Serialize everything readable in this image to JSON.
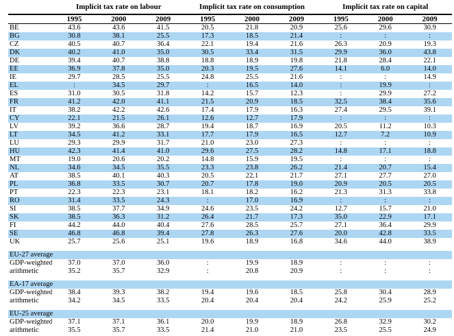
{
  "table": {
    "groups": [
      "Implicit tax rate on labour",
      "Implicit tax rate on consumption",
      "Implicit tax rate on capital"
    ],
    "years": [
      "1995",
      "2000",
      "2009"
    ],
    "missing_symbol": ":",
    "highlight_color": "#ADD6F3",
    "rows": [
      {
        "label": "BE",
        "values": [
          "43.6",
          "43.6",
          "41.5",
          "20.5",
          "21.8",
          "20.9",
          "25.6",
          "29.6",
          "30.9"
        ]
      },
      {
        "label": "BG",
        "values": [
          "30.8",
          "38.1",
          "25.5",
          "17.3",
          "18.5",
          "21.4",
          ":",
          ":",
          ":"
        ]
      },
      {
        "label": "CZ",
        "values": [
          "40.5",
          "40.7",
          "36.4",
          "22.1",
          "19.4",
          "21.6",
          "26.3",
          "20.9",
          "19.3"
        ]
      },
      {
        "label": "DK",
        "values": [
          "40.2",
          "41.0",
          "35.0",
          "30.5",
          "33.4",
          "31.5",
          "29.9",
          "36.0",
          "43.8"
        ]
      },
      {
        "label": "DE",
        "values": [
          "39.4",
          "40.7",
          "38.8",
          "18.8",
          "18.9",
          "19.8",
          "21.8",
          "28.4",
          "22.1"
        ]
      },
      {
        "label": "EE",
        "values": [
          "36.9",
          "37.8",
          "35.0",
          "20.3",
          "19.5",
          "27.6",
          "14.1",
          "6.0",
          "14.0"
        ]
      },
      {
        "label": "IE",
        "values": [
          "29.7",
          "28.5",
          "25.5",
          "24.8",
          "25.5",
          "21.6",
          ":",
          ":",
          "14.9"
        ]
      },
      {
        "label": "EL",
        "values": [
          ":",
          "34.5",
          "29.7",
          ":",
          "16.5",
          "14.0",
          ":",
          "19.9",
          ":"
        ]
      },
      {
        "label": "ES",
        "values": [
          "31.0",
          "30.5",
          "31.8",
          "14.2",
          "15.7",
          "12.3",
          ":",
          "29.9",
          "27.2"
        ]
      },
      {
        "label": "FR",
        "values": [
          "41.2",
          "42.0",
          "41.1",
          "21.5",
          "20.9",
          "18.5",
          "32.5",
          "38.4",
          "35.6"
        ]
      },
      {
        "label": "IT",
        "values": [
          "38.2",
          "42.2",
          "42.6",
          "17.4",
          "17.9",
          "16.3",
          "27.4",
          "29.5",
          "39.1"
        ]
      },
      {
        "label": "CY",
        "values": [
          "22.1",
          "21.5",
          "26.1",
          "12.6",
          "12.7",
          "17.9",
          ":",
          ":",
          ":"
        ]
      },
      {
        "label": "LV",
        "values": [
          "39.2",
          "36.6",
          "28.7",
          "19.4",
          "18.7",
          "16.9",
          "20.5",
          "11.2",
          "10.3"
        ]
      },
      {
        "label": "LT",
        "values": [
          "34.5",
          "41.2",
          "33.1",
          "17.7",
          "17.9",
          "16.5",
          "12.7",
          "7.2",
          "10.9"
        ]
      },
      {
        "label": "LU",
        "values": [
          "29.3",
          "29.9",
          "31.7",
          "21.0",
          "23.0",
          "27.3",
          ":",
          ":",
          ":"
        ]
      },
      {
        "label": "HU",
        "values": [
          "42.3",
          "41.4",
          "41.0",
          "29.6",
          "27.5",
          "28.2",
          "14.8",
          "17.1",
          "18.8"
        ]
      },
      {
        "label": "MT",
        "values": [
          "19.0",
          "20.6",
          "20.2",
          "14.8",
          "15.9",
          "19.5",
          ":",
          ":",
          ":"
        ]
      },
      {
        "label": "NL",
        "values": [
          "34.6",
          "34.5",
          "35.5",
          "23.3",
          "23.8",
          "26.2",
          "21.4",
          "20.7",
          "15.4"
        ]
      },
      {
        "label": "AT",
        "values": [
          "38.5",
          "40.1",
          "40.3",
          "20.5",
          "22.1",
          "21.7",
          "27.1",
          "27.7",
          "27.0"
        ]
      },
      {
        "label": "PL",
        "values": [
          "36.8",
          "33.5",
          "30.7",
          "20.7",
          "17.8",
          "19.0",
          "20.9",
          "20.5",
          "20.5"
        ]
      },
      {
        "label": "PT",
        "values": [
          "22.3",
          "22.3",
          "23.1",
          "18.1",
          "18.2",
          "16.2",
          "21.3",
          "31.3",
          "33.8"
        ]
      },
      {
        "label": "RO",
        "values": [
          "31.4",
          "33.5",
          "24.3",
          ":",
          "17.0",
          "16.9",
          ":",
          ":",
          ":"
        ]
      },
      {
        "label": "SI",
        "values": [
          "38.5",
          "37.7",
          "34.9",
          "24.6",
          "23.5",
          "24.2",
          "12.7",
          "15.7",
          "21.0"
        ]
      },
      {
        "label": "SK",
        "values": [
          "38.5",
          "36.3",
          "31.2",
          "26.4",
          "21.7",
          "17.3",
          "35.0",
          "22.9",
          "17.1"
        ]
      },
      {
        "label": "FI",
        "values": [
          "44.2",
          "44.0",
          "40.4",
          "27.6",
          "28.5",
          "25.7",
          "27.1",
          "36.4",
          "29.9"
        ]
      },
      {
        "label": "SE",
        "values": [
          "46.8",
          "46.8",
          "39.4",
          "27.8",
          "26.3",
          "27.6",
          "20.0",
          "42.8",
          "33.5"
        ]
      },
      {
        "label": "UK",
        "values": [
          "25.7",
          "25.6",
          "25.1",
          "19.6",
          "18.9",
          "16.8",
          "34.6",
          "44.0",
          "38.9"
        ]
      }
    ],
    "sections": [
      {
        "header": "EU-27 average",
        "rows": [
          {
            "label": "GDP-weighted",
            "values": [
              "37.0",
              "37.0",
              "36.0",
              ":",
              "19.9",
              "18.9",
              ":",
              ":",
              ":"
            ]
          },
          {
            "label": "arithmetic",
            "values": [
              "35.2",
              "35.7",
              "32.9",
              ":",
              "20.8",
              "20.9",
              ":",
              ":",
              ":"
            ]
          }
        ]
      },
      {
        "header": "EA-17 average",
        "rows": [
          {
            "label": "GDP-weighted",
            "values": [
              "38.4",
              "39.3",
              "38.2",
              "19.4",
              "19.6",
              "18.5",
              "25.8",
              "30.4",
              "28.9"
            ]
          },
          {
            "label": "arithmetic",
            "values": [
              "34.2",
              "34.5",
              "33.5",
              "20.4",
              "20.4",
              "20.4",
              "24.2",
              "25.9",
              "25.2"
            ]
          }
        ]
      },
      {
        "header": "EU-25 average",
        "rows": [
          {
            "label": "GDP-weighted",
            "values": [
              "37.1",
              "37.1",
              "36.1",
              "20.0",
              "19.9",
              "18.9",
              "26.8",
              "32.9",
              "30.2"
            ]
          },
          {
            "label": "arithmetic",
            "values": [
              "35.5",
              "35.7",
              "33.5",
              "21.4",
              "21.0",
              "21.0",
              "23.5",
              "25.5",
              "24.9"
            ]
          }
        ]
      }
    ]
  }
}
